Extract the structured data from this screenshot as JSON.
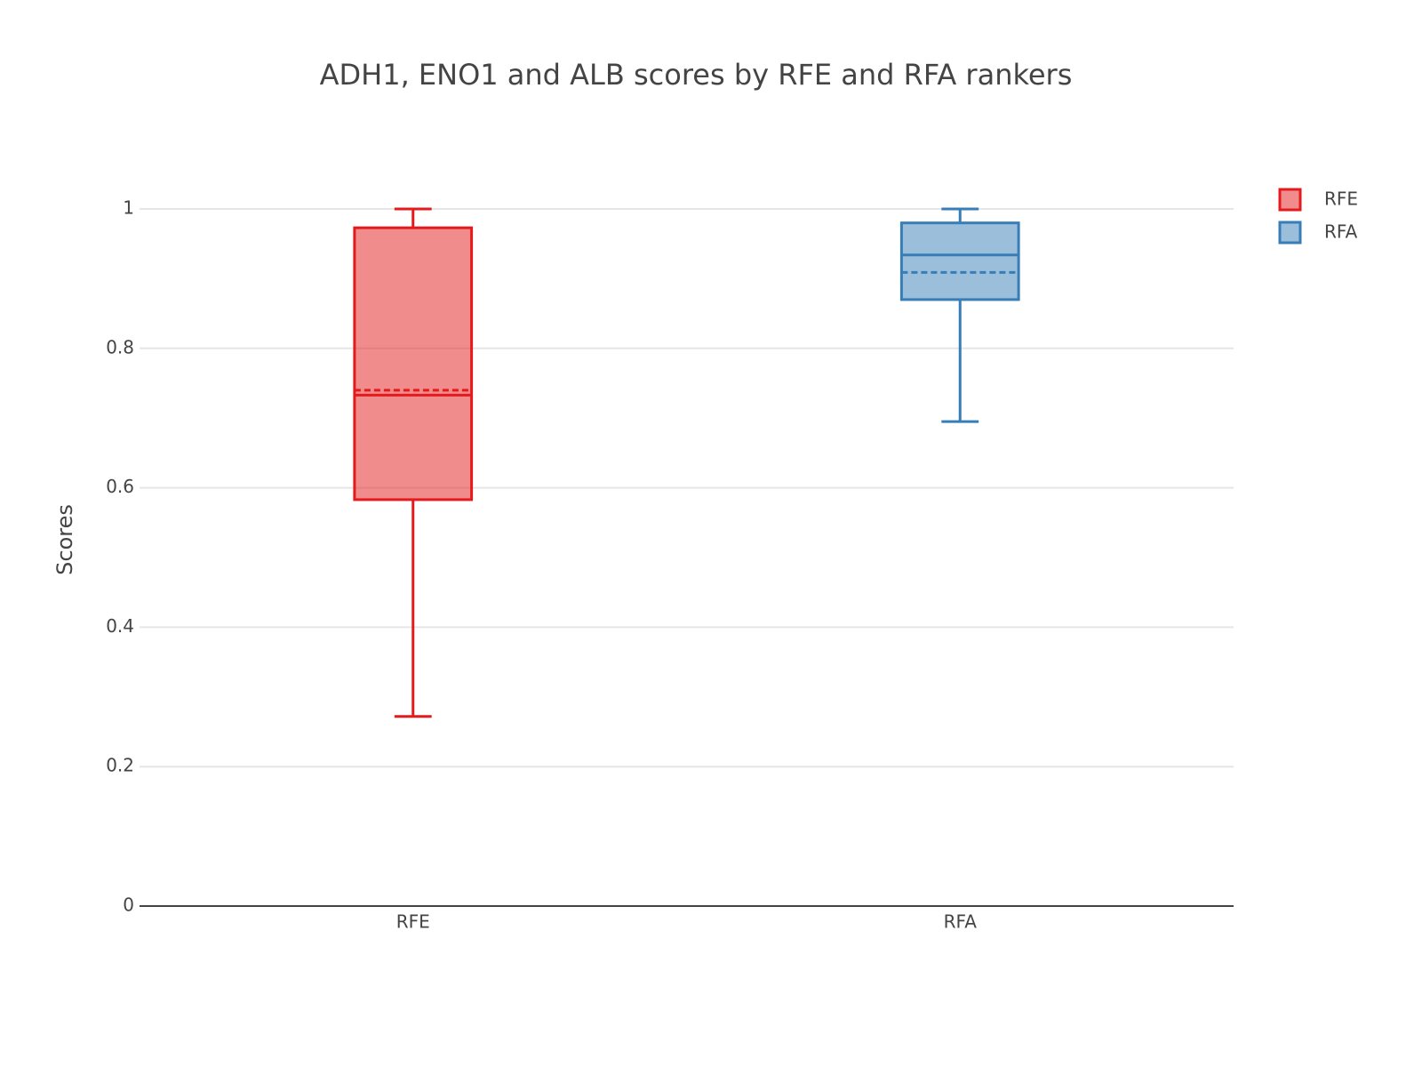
{
  "chart_data": {
    "type": "box",
    "title": "ADH1, ENO1 and ALB scores by RFE and RFA rankers",
    "y_label": "Scores",
    "categories": [
      "RFE",
      "RFA"
    ],
    "series": [
      {
        "name": "RFE",
        "color": "#e41a1c",
        "min": 0.272,
        "q1": 0.583,
        "median": 0.733,
        "q3": 0.973,
        "max": 1.0,
        "mean": 0.74
      },
      {
        "name": "RFA",
        "color": "#377eb8",
        "min": 0.695,
        "q1": 0.87,
        "median": 0.934,
        "q3": 0.98,
        "max": 1.0,
        "mean": 0.909
      }
    ],
    "ylim": [
      0,
      1.05
    ],
    "yticks": [
      0,
      0.2,
      0.4,
      0.6,
      0.8,
      1
    ],
    "grid": true,
    "legend": "top-right"
  }
}
